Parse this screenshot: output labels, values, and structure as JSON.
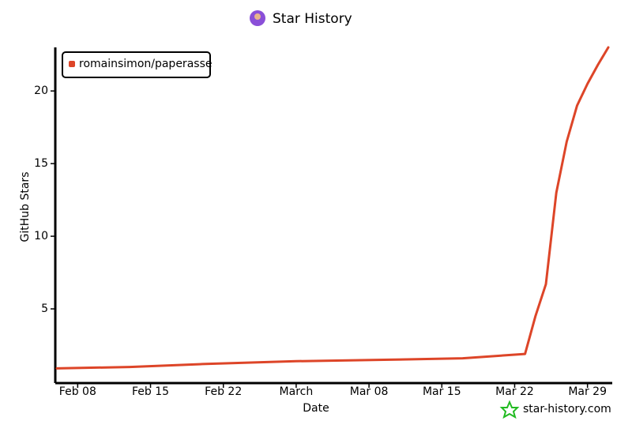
{
  "chart_data": {
    "type": "line",
    "title": "Star History",
    "x_label": "Date",
    "y_label": "GitHub Stars",
    "watermark": "star-history.com",
    "x": [
      "Feb 06",
      "Feb 13",
      "Feb 20",
      "Mar 01",
      "Mar 10",
      "Mar 17",
      "Mar 23",
      "Mar 24",
      "Mar 25",
      "Mar 26",
      "Mar 27",
      "Mar 28",
      "Mar 29",
      "Mar 30",
      "Mar 31"
    ],
    "series": [
      {
        "name": "romainsimon/paperasse",
        "color": "#dd4528",
        "values": [
          0.9,
          1.0,
          1.2,
          1.4,
          1.5,
          1.6,
          1.9,
          4.5,
          6.7,
          13,
          16.5,
          19,
          20.5,
          21.8,
          23
        ]
      }
    ],
    "xlim": [
      "Feb 06",
      "Mar 31"
    ],
    "xticks": [
      "Feb 08",
      "Feb 15",
      "Feb 22",
      {
        "value": "Mar 01",
        "label": "March"
      },
      "Mar 08",
      "Mar 15",
      "Mar 22",
      "Mar 29"
    ],
    "ylim": [
      0,
      23
    ],
    "yticks": [
      5,
      10,
      15,
      20
    ],
    "legend": "top-left"
  }
}
